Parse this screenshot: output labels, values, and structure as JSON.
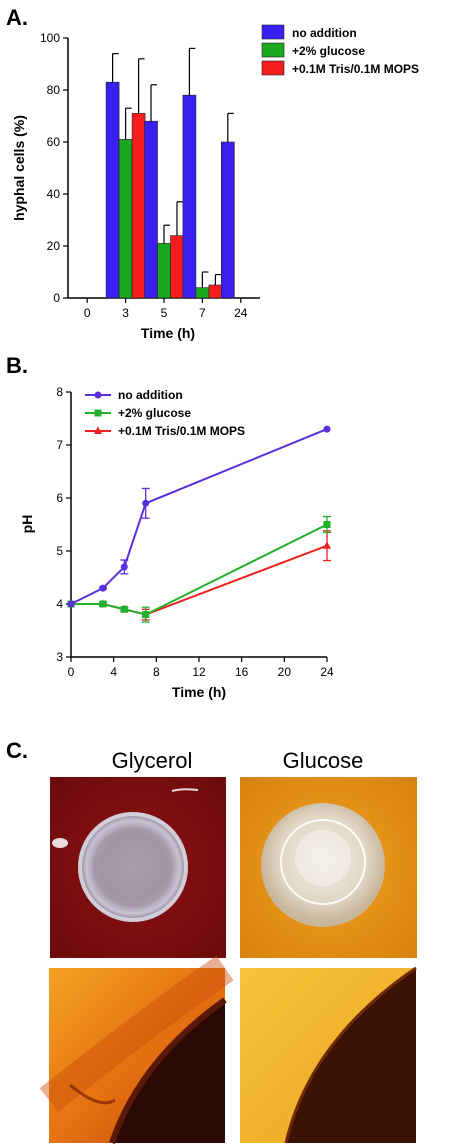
{
  "panels": {
    "a_label": "A.",
    "b_label": "B.",
    "c_label": "C."
  },
  "photos": {
    "glycerol_label": "Glycerol",
    "glucose_label": "Glucose"
  },
  "chart_data": [
    {
      "type": "bar",
      "xlabel": "Time (h)",
      "ylabel": "hyphal cells (%)",
      "ylim": [
        0,
        100
      ],
      "yticks": [
        "0",
        "20",
        "40",
        "60",
        "80",
        "100"
      ],
      "categories": [
        "0",
        "3",
        "5",
        "7",
        "24"
      ],
      "legend_position": "top-right",
      "series": [
        {
          "name": "no addition",
          "color": "#3b1ff0",
          "values": [
            null,
            83,
            68,
            78,
            60
          ],
          "errors": [
            null,
            11,
            14,
            18,
            11
          ]
        },
        {
          "name": "+2% glucose",
          "color": "#19a81f",
          "values": [
            null,
            61,
            21,
            4,
            null
          ],
          "errors": [
            null,
            12,
            7,
            6,
            null
          ]
        },
        {
          "name": "+0.1M Tris/0.1M MOPS",
          "color": "#f51d1d",
          "values": [
            null,
            71,
            24,
            5,
            null
          ],
          "errors": [
            null,
            21,
            13,
            4,
            null
          ]
        }
      ]
    },
    {
      "type": "line",
      "xlabel": "Time (h)",
      "ylabel": "pH",
      "xlim": [
        0,
        24
      ],
      "ylim": [
        3,
        8
      ],
      "xticks": [
        "0",
        "4",
        "8",
        "12",
        "16",
        "20",
        "24"
      ],
      "yticks": [
        "3",
        "4",
        "5",
        "6",
        "7",
        "8"
      ],
      "legend_position": "top-left",
      "series": [
        {
          "name": "no addition",
          "color": "#5a2fe0",
          "marker": "circle",
          "x": [
            0,
            3,
            5,
            7,
            24
          ],
          "y": [
            4.0,
            4.3,
            4.7,
            5.9,
            7.3
          ],
          "errors": [
            0,
            0.02,
            0.13,
            0.28,
            0
          ]
        },
        {
          "name": "+2% glucose",
          "color": "#22b02a",
          "marker": "square",
          "x": [
            0,
            3,
            5,
            7,
            24
          ],
          "y": [
            4.0,
            4.0,
            3.9,
            3.8,
            5.5
          ],
          "errors": [
            0,
            0.03,
            0.03,
            0.14,
            0.15
          ]
        },
        {
          "name": "+0.1M Tris/0.1M MOPS",
          "color": "#ee2020",
          "marker": "triangle",
          "x": [
            0,
            3,
            5,
            7,
            24
          ],
          "y": [
            4.0,
            4.0,
            3.9,
            3.8,
            5.1
          ],
          "errors": [
            0,
            0.03,
            0.03,
            0.1,
            0.28
          ]
        }
      ]
    }
  ]
}
